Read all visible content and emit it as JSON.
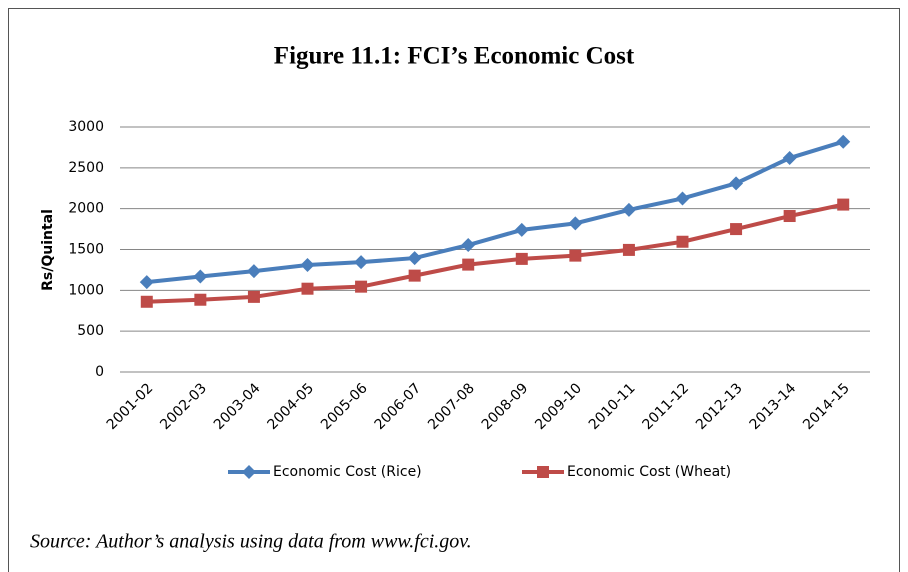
{
  "chart_data": {
    "type": "line",
    "title": "Figure 11.1: FCI’s Economic Cost",
    "ylabel": "Rs/Quintal",
    "source": "Source: Author’s analysis using data from www.fci.gov.",
    "categories": [
      "2001-02",
      "2002-03",
      "2003-04",
      "2004-05",
      "2005-06",
      "2006-07",
      "2007-08",
      "2008-09",
      "2009-10",
      "2010-11",
      "2011-12",
      "2012-13",
      "2013-14",
      "2014-15"
    ],
    "series": [
      {
        "name": "Economic Cost (Rice)",
        "color": "#4a7ebb",
        "marker": "diamond",
        "values": [
          1100,
          1170,
          1235,
          1310,
          1345,
          1395,
          1555,
          1740,
          1820,
          1985,
          2125,
          2310,
          2620,
          2820
        ]
      },
      {
        "name": "Economic Cost (Wheat)",
        "color": "#be4b48",
        "marker": "square",
        "values": [
          860,
          885,
          920,
          1020,
          1045,
          1180,
          1315,
          1385,
          1425,
          1495,
          1595,
          1750,
          1910,
          2050
        ]
      }
    ],
    "ylim": [
      0,
      3000
    ],
    "yticks": [
      0,
      500,
      1000,
      1500,
      2000,
      2500,
      3000
    ],
    "grid": true,
    "legend": "bottom"
  }
}
